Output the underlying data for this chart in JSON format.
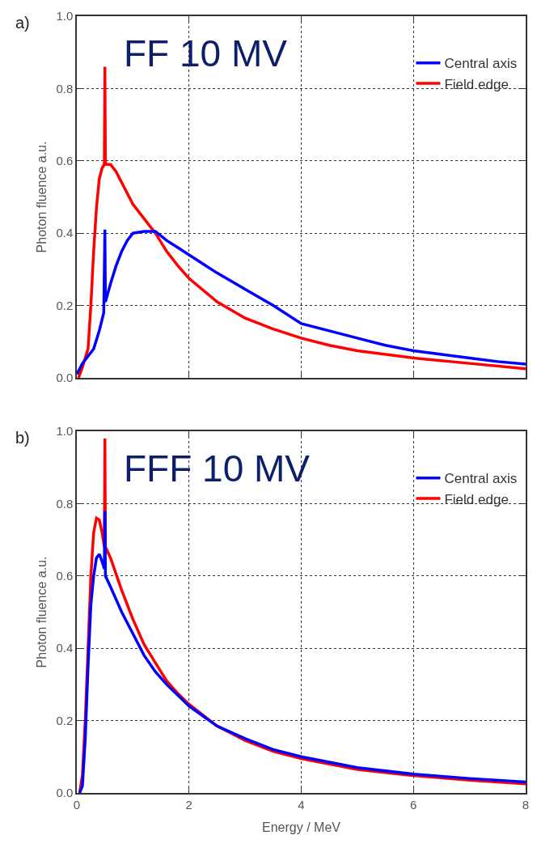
{
  "chart_data": [
    {
      "type": "line",
      "ylabel": "Photon fluence a.u.",
      "annotations": [
        "a)",
        "FF 10 MV"
      ],
      "xlim": [
        0,
        8
      ],
      "ylim": [
        0,
        1
      ],
      "xticks": [
        0,
        2,
        4,
        6,
        8
      ],
      "yticks": [
        {
          "value": 0,
          "label": "0.0"
        },
        {
          "value": 0.2,
          "label": "0.2"
        },
        {
          "value": 0.4,
          "label": "0.4"
        },
        {
          "value": 0.6,
          "label": "0.6"
        },
        {
          "value": 0.8,
          "label": "0.8"
        },
        {
          "value": 1,
          "label": "1.0"
        }
      ],
      "tick_labels": "y",
      "grid": true,
      "legend": "top right",
      "series": [
        {
          "name": "Central axis",
          "color": "#0000ff",
          "x": [
            0.0,
            0.1,
            0.2,
            0.3,
            0.4,
            0.48,
            0.5,
            0.51,
            0.6,
            0.7,
            0.8,
            0.9,
            1.0,
            1.2,
            1.4,
            1.6,
            1.8,
            2.0,
            2.5,
            3,
            3.5,
            4,
            4.5,
            5,
            5.5,
            6,
            6.5,
            7,
            7.5,
            8
          ],
          "values": [
            0.01,
            0.04,
            0.06,
            0.08,
            0.13,
            0.18,
            0.41,
            0.21,
            0.26,
            0.31,
            0.35,
            0.38,
            0.4,
            0.405,
            0.405,
            0.38,
            0.36,
            0.34,
            0.29,
            0.245,
            0.2,
            0.15,
            0.13,
            0.11,
            0.09,
            0.075,
            0.065,
            0.055,
            0.045,
            0.038
          ]
        },
        {
          "name": "Field edge",
          "color": "#ff0000",
          "x": [
            0.03,
            0.1,
            0.2,
            0.25,
            0.3,
            0.35,
            0.4,
            0.45,
            0.49,
            0.5,
            0.51,
            0.6,
            0.7,
            0.8,
            1.0,
            1.2,
            1.4,
            1.6,
            1.8,
            2.0,
            2.5,
            3,
            3.5,
            4,
            4.5,
            5,
            6,
            7,
            8
          ],
          "values": [
            0.0,
            0.03,
            0.08,
            0.2,
            0.35,
            0.47,
            0.55,
            0.58,
            0.59,
            0.86,
            0.59,
            0.59,
            0.57,
            0.54,
            0.48,
            0.44,
            0.4,
            0.35,
            0.31,
            0.275,
            0.21,
            0.165,
            0.135,
            0.11,
            0.09,
            0.075,
            0.055,
            0.04,
            0.025
          ]
        }
      ]
    },
    {
      "type": "line",
      "xlabel": "Energy / MeV",
      "ylabel": "Photon fluence a.u.",
      "annotations": [
        "b)",
        "FFF 10 MV"
      ],
      "xlim": [
        0,
        8
      ],
      "ylim": [
        0,
        1
      ],
      "xticks": [
        0,
        2,
        4,
        6,
        8
      ],
      "yticks": [
        {
          "value": 0,
          "label": "0.0"
        },
        {
          "value": 0.2,
          "label": "0.2"
        },
        {
          "value": 0.4,
          "label": "0.4"
        },
        {
          "value": 0.6,
          "label": "0.6"
        },
        {
          "value": 0.8,
          "label": "0.8"
        },
        {
          "value": 1,
          "label": "1.0"
        }
      ],
      "grid": true,
      "legend": "top right",
      "series": [
        {
          "name": "Central axis",
          "color": "#0000ff",
          "x": [
            0.05,
            0.1,
            0.15,
            0.2,
            0.25,
            0.3,
            0.35,
            0.4,
            0.45,
            0.49,
            0.5,
            0.51,
            0.6,
            0.8,
            1.0,
            1.2,
            1.4,
            1.6,
            1.8,
            2,
            2.5,
            3,
            3.5,
            4,
            5,
            6,
            7,
            8
          ],
          "values": [
            0.0,
            0.02,
            0.15,
            0.35,
            0.52,
            0.6,
            0.65,
            0.66,
            0.64,
            0.62,
            0.78,
            0.6,
            0.57,
            0.5,
            0.44,
            0.38,
            0.335,
            0.3,
            0.27,
            0.24,
            0.185,
            0.15,
            0.12,
            0.1,
            0.07,
            0.052,
            0.04,
            0.03
          ]
        },
        {
          "name": "Field edge",
          "color": "#ff0000",
          "x": [
            0.05,
            0.1,
            0.15,
            0.2,
            0.25,
            0.3,
            0.35,
            0.4,
            0.45,
            0.49,
            0.5,
            0.51,
            0.6,
            0.8,
            1.0,
            1.2,
            1.4,
            1.6,
            1.8,
            2,
            2.5,
            3,
            3.5,
            4,
            5,
            6,
            7,
            8
          ],
          "values": [
            0.0,
            0.05,
            0.2,
            0.4,
            0.6,
            0.72,
            0.76,
            0.755,
            0.72,
            0.68,
            0.98,
            0.68,
            0.65,
            0.56,
            0.48,
            0.41,
            0.36,
            0.31,
            0.275,
            0.245,
            0.185,
            0.145,
            0.115,
            0.095,
            0.065,
            0.048,
            0.035,
            0.025
          ]
        }
      ]
    }
  ]
}
